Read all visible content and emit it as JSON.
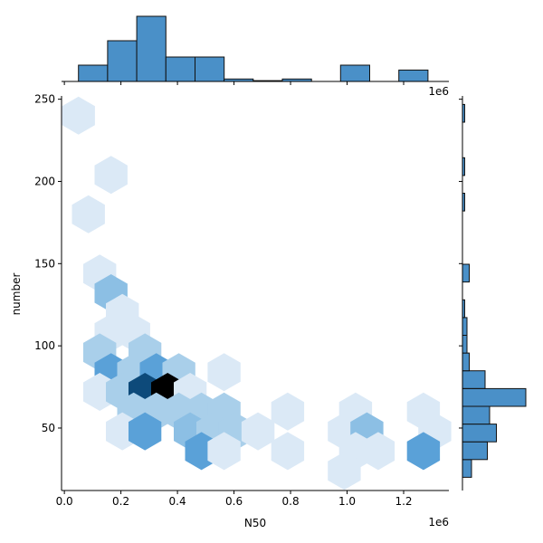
{
  "chart_data": {
    "type": "hexbin-joint",
    "xlabel": "N50",
    "ylabel": "number",
    "x_offset_label": "1e6",
    "top_offset_label": "1e6",
    "xlim": [
      -0.01,
      1.36
    ],
    "ylim": [
      12,
      252
    ],
    "xticks": [
      0.0,
      0.2,
      0.4,
      0.6,
      0.8,
      1.0,
      1.2
    ],
    "xtick_labels": [
      "0.0",
      "0.2",
      "0.4",
      "0.6",
      "0.8",
      "1.0",
      "1.2"
    ],
    "yticks": [
      50,
      100,
      150,
      200,
      250
    ],
    "ytick_labels": [
      "50",
      "100",
      "150",
      "200",
      "250"
    ],
    "colors": {
      "hist_fill": "#4a90c8",
      "hist_edge": "#111111",
      "hex_light": "#dbe9f6",
      "hex_mid": "#a9cfea",
      "hex_medium": "#8cbfe4",
      "hex_strong": "#5aa1d8",
      "hex_dark": "#0d4a7a",
      "hex_black": "#000000"
    },
    "hexbins": [
      {
        "x": 0.05,
        "y": 240,
        "level": "light"
      },
      {
        "x": 0.165,
        "y": 204,
        "level": "light"
      },
      {
        "x": 0.085,
        "y": 180,
        "level": "light"
      },
      {
        "x": 0.125,
        "y": 144,
        "level": "light"
      },
      {
        "x": 0.165,
        "y": 132,
        "level": "medium"
      },
      {
        "x": 0.205,
        "y": 120,
        "level": "light"
      },
      {
        "x": 0.165,
        "y": 108,
        "level": "light"
      },
      {
        "x": 0.245,
        "y": 108,
        "level": "light"
      },
      {
        "x": 0.125,
        "y": 96,
        "level": "mid"
      },
      {
        "x": 0.285,
        "y": 96,
        "level": "mid"
      },
      {
        "x": 0.165,
        "y": 84,
        "level": "strong"
      },
      {
        "x": 0.245,
        "y": 84,
        "level": "mid"
      },
      {
        "x": 0.325,
        "y": 84,
        "level": "strong"
      },
      {
        "x": 0.405,
        "y": 84,
        "level": "mid"
      },
      {
        "x": 0.565,
        "y": 84,
        "level": "light"
      },
      {
        "x": 0.125,
        "y": 72,
        "level": "light"
      },
      {
        "x": 0.205,
        "y": 72,
        "level": "mid"
      },
      {
        "x": 0.285,
        "y": 72,
        "level": "dark"
      },
      {
        "x": 0.365,
        "y": 72,
        "level": "black"
      },
      {
        "x": 0.445,
        "y": 72,
        "level": "light"
      },
      {
        "x": 0.245,
        "y": 60,
        "level": "mid"
      },
      {
        "x": 0.325,
        "y": 60,
        "level": "mid"
      },
      {
        "x": 0.405,
        "y": 60,
        "level": "mid"
      },
      {
        "x": 0.485,
        "y": 60,
        "level": "mid"
      },
      {
        "x": 0.565,
        "y": 60,
        "level": "mid"
      },
      {
        "x": 0.79,
        "y": 60,
        "level": "light"
      },
      {
        "x": 1.03,
        "y": 60,
        "level": "light"
      },
      {
        "x": 1.27,
        "y": 60,
        "level": "light"
      },
      {
        "x": 0.205,
        "y": 48,
        "level": "light"
      },
      {
        "x": 0.285,
        "y": 48,
        "level": "strong"
      },
      {
        "x": 0.445,
        "y": 48,
        "level": "medium"
      },
      {
        "x": 0.525,
        "y": 48,
        "level": "mid"
      },
      {
        "x": 0.605,
        "y": 48,
        "level": "mid"
      },
      {
        "x": 0.685,
        "y": 48,
        "level": "light"
      },
      {
        "x": 0.99,
        "y": 48,
        "level": "light"
      },
      {
        "x": 1.07,
        "y": 48,
        "level": "medium"
      },
      {
        "x": 1.31,
        "y": 48,
        "level": "light"
      },
      {
        "x": 0.485,
        "y": 36,
        "level": "strong"
      },
      {
        "x": 0.565,
        "y": 36,
        "level": "light"
      },
      {
        "x": 0.79,
        "y": 36,
        "level": "light"
      },
      {
        "x": 1.03,
        "y": 36,
        "level": "light"
      },
      {
        "x": 1.11,
        "y": 36,
        "level": "light"
      },
      {
        "x": 1.27,
        "y": 36,
        "level": "strong"
      },
      {
        "x": 0.99,
        "y": 24,
        "level": "light"
      }
    ],
    "top_histogram": {
      "bin_edges": [
        0.05,
        0.153,
        0.256,
        0.359,
        0.462,
        0.565,
        0.668,
        0.771,
        0.874,
        0.977,
        1.08,
        1.183,
        1.286
      ],
      "counts": [
        2,
        5,
        8,
        3,
        3,
        0.3,
        0.1,
        0.3,
        0,
        2,
        0,
        1.4
      ]
    },
    "right_histogram": {
      "bin_edges": [
        20,
        30.8,
        41.6,
        52.4,
        63.2,
        74,
        84.8,
        95.6,
        106.4,
        117.2,
        128,
        138.8,
        149.6,
        160.4,
        171.2,
        182,
        192.8,
        203.6,
        214.4,
        225.2,
        236,
        246.8
      ],
      "counts": [
        2,
        5.5,
        7.5,
        6,
        14,
        5,
        1.5,
        1,
        1,
        0.5,
        0,
        1.5,
        0,
        0,
        0,
        0.5,
        0,
        0.5,
        0,
        0,
        0.5
      ]
    }
  }
}
